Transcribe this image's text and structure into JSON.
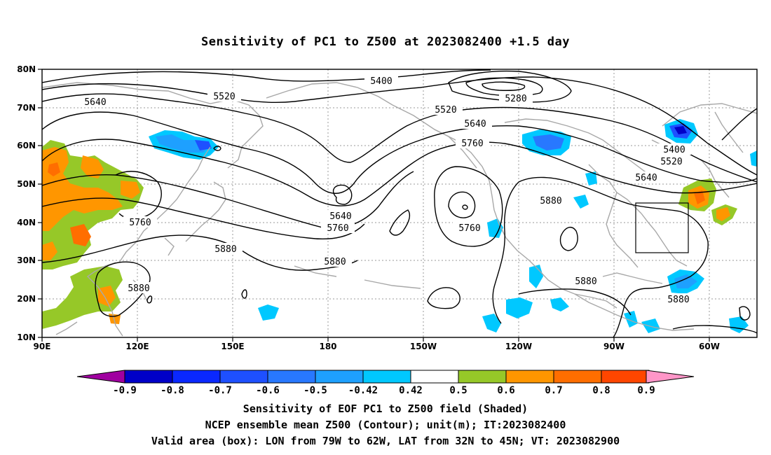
{
  "title": "Sensitivity of PC1 to Z500 at 2023082400 +1.5 day",
  "map": {
    "lon_ticks": [
      "90E",
      "120E",
      "150E",
      "180",
      "150W",
      "120W",
      "90W",
      "60W"
    ],
    "lat_ticks": [
      "80N",
      "70N",
      "60N",
      "50N",
      "40N",
      "30N",
      "20N",
      "10N"
    ],
    "contour_labels": [
      {
        "text": "5400"
      },
      {
        "text": "5280"
      },
      {
        "text": "5520"
      },
      {
        "text": "5520"
      },
      {
        "text": "5640"
      },
      {
        "text": "5640"
      },
      {
        "text": "5760"
      },
      {
        "text": "5400"
      },
      {
        "text": "5520"
      },
      {
        "text": "5640"
      },
      {
        "text": "5880"
      },
      {
        "text": "5760"
      },
      {
        "text": "5640"
      },
      {
        "text": "5760"
      },
      {
        "text": "5880"
      },
      {
        "text": "5880"
      },
      {
        "text": "5760"
      },
      {
        "text": "5880"
      },
      {
        "text": "5880"
      },
      {
        "text": "5880"
      }
    ],
    "valid_box": {
      "lon_from": "79W",
      "lon_to": "62W",
      "lat_from": "32N",
      "lat_to": "45N"
    }
  },
  "colorbar": {
    "colors": [
      "#a000a0",
      "#0000c8",
      "#0a28ff",
      "#1e50ff",
      "#2878ff",
      "#1ea0ff",
      "#00c8ff",
      "#ffffff",
      "#96c828",
      "#ff9600",
      "#ff6e00",
      "#ff4600",
      "#ff1400",
      "#ff96c8"
    ],
    "labels": [
      "-0.9",
      "-0.8",
      "-0.7",
      "-0.6",
      "-0.5",
      "-0.42",
      "0.42",
      "0.5",
      "0.6",
      "0.7",
      "0.8",
      "0.9"
    ]
  },
  "captions": {
    "line1": "Sensitivity of EOF PC1 to Z500 field (Shaded)",
    "line2": "NCEP ensemble mean Z500 (Contour); unit(m); IT:2023082400",
    "line3": "Valid area (box): LON from 79W to 62W, LAT from 32N to 45N; VT: 2023082900"
  }
}
